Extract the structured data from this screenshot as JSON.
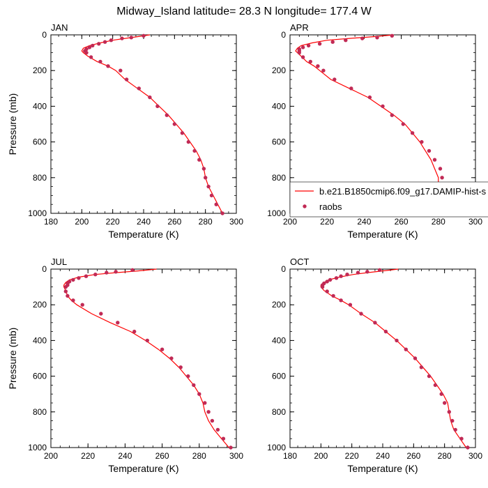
{
  "title": "Midway_Island  latitude= 28.3 N longitude= 177.4 W",
  "colors": {
    "model_line": "#ff0000",
    "raobs_marker": "#c12a55",
    "axis": "#000000"
  },
  "legend": {
    "model_label": "b.e21.B1850cmip6.f09_g17.DAMIP-hist-s",
    "raobs_label": "raobs",
    "placement": "in APR panel, lower right, extending past the panel edge"
  },
  "chart_data": [
    {
      "type": "line",
      "panel_label": "JAN",
      "xlabel": "Temperature (K)",
      "ylabel": "Pressure (mb)",
      "xlim": [
        180,
        300
      ],
      "ylim": [
        1000,
        0
      ],
      "xticks": [
        "180",
        "200",
        "220",
        "240",
        "260",
        "280",
        "300"
      ],
      "yticks": [
        "0",
        "200",
        "400",
        "600",
        "800",
        "1000"
      ],
      "series": [
        {
          "name": "b.e21.B1850cmip6.f09_g17.DAMIP-hist-s",
          "points": [
            [
              244,
              0
            ],
            [
              236,
              10
            ],
            [
              228,
              20
            ],
            [
              220,
              30
            ],
            [
              212,
              45
            ],
            [
              205,
              60
            ],
            [
              201,
              75
            ],
            [
              200,
              90
            ],
            [
              201,
              100
            ],
            [
              204,
              120
            ],
            [
              210,
              150
            ],
            [
              217,
              175
            ],
            [
              222,
              200
            ],
            [
              228,
              250
            ],
            [
              236,
              300
            ],
            [
              244,
              350
            ],
            [
              250,
              400
            ],
            [
              256,
              450
            ],
            [
              261,
              500
            ],
            [
              266,
              550
            ],
            [
              270,
              600
            ],
            [
              274,
              650
            ],
            [
              277,
              700
            ],
            [
              279,
              750
            ],
            [
              280,
              800
            ],
            [
              282,
              850
            ],
            [
              285,
              900
            ],
            [
              288,
              950
            ],
            [
              291,
              1000
            ]
          ]
        },
        {
          "name": "raobs",
          "points": [
            [
              240,
              5
            ],
            [
              232,
              15
            ],
            [
              226,
              20
            ],
            [
              219,
              30
            ],
            [
              215,
              40
            ],
            [
              211,
              50
            ],
            [
              207,
              60
            ],
            [
              205,
              70
            ],
            [
              203,
              80
            ],
            [
              202,
              90
            ],
            [
              203,
              100
            ],
            [
              206,
              125
            ],
            [
              212,
              150
            ],
            [
              217,
              175
            ],
            [
              225,
              200
            ],
            [
              229,
              250
            ],
            [
              237,
              300
            ],
            [
              244,
              350
            ],
            [
              249,
              400
            ],
            [
              255,
              450
            ],
            [
              260,
              500
            ],
            [
              265,
              550
            ],
            [
              269,
              600
            ],
            [
              273,
              650
            ],
            [
              276,
              700
            ],
            [
              279,
              750
            ],
            [
              280,
              800
            ],
            [
              282,
              850
            ],
            [
              284,
              900
            ],
            [
              287,
              950
            ],
            [
              291,
              1000
            ]
          ]
        }
      ]
    },
    {
      "type": "line",
      "panel_label": "APR",
      "xlabel": "Temperature (K)",
      "ylabel": "",
      "xlim": [
        200,
        300
      ],
      "ylim": [
        1000,
        0
      ],
      "xticks": [
        "200",
        "220",
        "240",
        "260",
        "280",
        "300"
      ],
      "yticks": [
        "0",
        "200",
        "400",
        "600",
        "800",
        "1000"
      ],
      "series": [
        {
          "name": "b.e21.B1850cmip6.f09_g17.DAMIP-hist-s",
          "points": [
            [
              256,
              0
            ],
            [
              245,
              10
            ],
            [
              232,
              20
            ],
            [
              220,
              30
            ],
            [
              212,
              45
            ],
            [
              206,
              60
            ],
            [
              204,
              75
            ],
            [
              203,
              90
            ],
            [
              204,
              100
            ],
            [
              206,
              120
            ],
            [
              209,
              150
            ],
            [
              213,
              175
            ],
            [
              216,
              200
            ],
            [
              222,
              250
            ],
            [
              232,
              300
            ],
            [
              242,
              350
            ],
            [
              249,
              400
            ],
            [
              256,
              450
            ],
            [
              262,
              500
            ],
            [
              266,
              550
            ],
            [
              270,
              600
            ],
            [
              273,
              650
            ],
            [
              276,
              700
            ],
            [
              278,
              750
            ],
            [
              280,
              800
            ],
            [
              280,
              850
            ],
            [
              283,
              900
            ],
            [
              287,
              950
            ],
            [
              291,
              1000
            ]
          ]
        },
        {
          "name": "raobs",
          "points": [
            [
              255,
              5
            ],
            [
              247,
              15
            ],
            [
              239,
              20
            ],
            [
              230,
              30
            ],
            [
              223,
              40
            ],
            [
              216,
              50
            ],
            [
              210,
              60
            ],
            [
              207,
              70
            ],
            [
              205,
              80
            ],
            [
              205,
              90
            ],
            [
              205,
              100
            ],
            [
              207,
              125
            ],
            [
              211,
              150
            ],
            [
              215,
              175
            ],
            [
              218,
              200
            ],
            [
              224,
              250
            ],
            [
              233,
              300
            ],
            [
              243,
              350
            ],
            [
              250,
              400
            ],
            [
              255,
              450
            ],
            [
              261,
              500
            ],
            [
              266,
              550
            ],
            [
              271,
              600
            ],
            [
              275,
              650
            ],
            [
              278,
              700
            ],
            [
              281,
              750
            ],
            [
              282,
              800
            ],
            [
              283,
              850
            ],
            [
              284,
              900
            ],
            [
              287,
              950
            ],
            [
              291,
              1000
            ]
          ]
        }
      ]
    },
    {
      "type": "line",
      "panel_label": "JUL",
      "xlabel": "Temperature (K)",
      "ylabel": "Pressure (mb)",
      "xlim": [
        200,
        300
      ],
      "ylim": [
        1000,
        0
      ],
      "xticks": [
        "200",
        "220",
        "240",
        "260",
        "280",
        "300"
      ],
      "yticks": [
        "0",
        "200",
        "400",
        "600",
        "800",
        "1000"
      ],
      "series": [
        {
          "name": "b.e21.B1850cmip6.f09_g17.DAMIP-hist-s",
          "points": [
            [
              257,
              0
            ],
            [
              247,
              10
            ],
            [
              235,
              20
            ],
            [
              224,
              30
            ],
            [
              215,
              45
            ],
            [
              210,
              60
            ],
            [
              208,
              75
            ],
            [
              207,
              90
            ],
            [
              207,
              100
            ],
            [
              208,
              120
            ],
            [
              209,
              150
            ],
            [
              211,
              175
            ],
            [
              214,
              200
            ],
            [
              222,
              250
            ],
            [
              232,
              300
            ],
            [
              243,
              350
            ],
            [
              251,
              400
            ],
            [
              258,
              450
            ],
            [
              264,
              500
            ],
            [
              269,
              550
            ],
            [
              273,
              600
            ],
            [
              277,
              650
            ],
            [
              280,
              700
            ],
            [
              282,
              750
            ],
            [
              283,
              800
            ],
            [
              285,
              850
            ],
            [
              288,
              900
            ],
            [
              292,
              950
            ],
            [
              296,
              1000
            ]
          ]
        },
        {
          "name": "raobs",
          "points": [
            [
              244,
              5
            ],
            [
              235,
              15
            ],
            [
              230,
              20
            ],
            [
              224,
              30
            ],
            [
              219,
              40
            ],
            [
              215,
              50
            ],
            [
              212,
              60
            ],
            [
              210,
              70
            ],
            [
              209,
              80
            ],
            [
              209,
              90
            ],
            [
              208,
              100
            ],
            [
              208,
              125
            ],
            [
              209,
              150
            ],
            [
              212,
              175
            ],
            [
              217,
              200
            ],
            [
              227,
              250
            ],
            [
              236,
              300
            ],
            [
              245,
              350
            ],
            [
              252,
              400
            ],
            [
              260,
              450
            ],
            [
              265,
              500
            ],
            [
              270,
              550
            ],
            [
              274,
              600
            ],
            [
              277,
              650
            ],
            [
              280,
              700
            ],
            [
              283,
              750
            ],
            [
              285,
              800
            ],
            [
              287,
              850
            ],
            [
              290,
              900
            ],
            [
              293,
              950
            ],
            [
              297,
              1000
            ]
          ]
        }
      ]
    },
    {
      "type": "line",
      "panel_label": "OCT",
      "xlabel": "Temperature (K)",
      "ylabel": "",
      "xlim": [
        180,
        300
      ],
      "ylim": [
        1000,
        0
      ],
      "xticks": [
        "180",
        "200",
        "220",
        "240",
        "260",
        "280",
        "300"
      ],
      "yticks": [
        "0",
        "200",
        "400",
        "600",
        "800",
        "1000"
      ],
      "series": [
        {
          "name": "b.e21.B1850cmip6.f09_g17.DAMIP-hist-s",
          "points": [
            [
              250,
              0
            ],
            [
              240,
              10
            ],
            [
              230,
              20
            ],
            [
              221,
              30
            ],
            [
              212,
              45
            ],
            [
              205,
              60
            ],
            [
              202,
              75
            ],
            [
              200,
              90
            ],
            [
              200,
              100
            ],
            [
              202,
              120
            ],
            [
              207,
              150
            ],
            [
              213,
              175
            ],
            [
              218,
              200
            ],
            [
              226,
              250
            ],
            [
              235,
              300
            ],
            [
              242,
              350
            ],
            [
              249,
              400
            ],
            [
              255,
              450
            ],
            [
              261,
              500
            ],
            [
              266,
              550
            ],
            [
              271,
              600
            ],
            [
              275,
              650
            ],
            [
              279,
              700
            ],
            [
              282,
              750
            ],
            [
              283,
              800
            ],
            [
              284,
              850
            ],
            [
              286,
              900
            ],
            [
              290,
              950
            ],
            [
              294,
              1000
            ]
          ]
        },
        {
          "name": "raobs",
          "points": [
            [
              238,
              5
            ],
            [
              230,
              15
            ],
            [
              224,
              20
            ],
            [
              217,
              30
            ],
            [
              213,
              40
            ],
            [
              210,
              50
            ],
            [
              206,
              60
            ],
            [
              204,
              70
            ],
            [
              202,
              80
            ],
            [
              201,
              90
            ],
            [
              201,
              100
            ],
            [
              204,
              125
            ],
            [
              208,
              150
            ],
            [
              213,
              175
            ],
            [
              219,
              200
            ],
            [
              226,
              250
            ],
            [
              235,
              300
            ],
            [
              242,
              350
            ],
            [
              249,
              400
            ],
            [
              255,
              450
            ],
            [
              261,
              500
            ],
            [
              265,
              550
            ],
            [
              270,
              600
            ],
            [
              274,
              650
            ],
            [
              278,
              700
            ],
            [
              280,
              750
            ],
            [
              283,
              800
            ],
            [
              285,
              850
            ],
            [
              287,
              900
            ],
            [
              291,
              950
            ],
            [
              295,
              1000
            ]
          ]
        }
      ]
    }
  ]
}
